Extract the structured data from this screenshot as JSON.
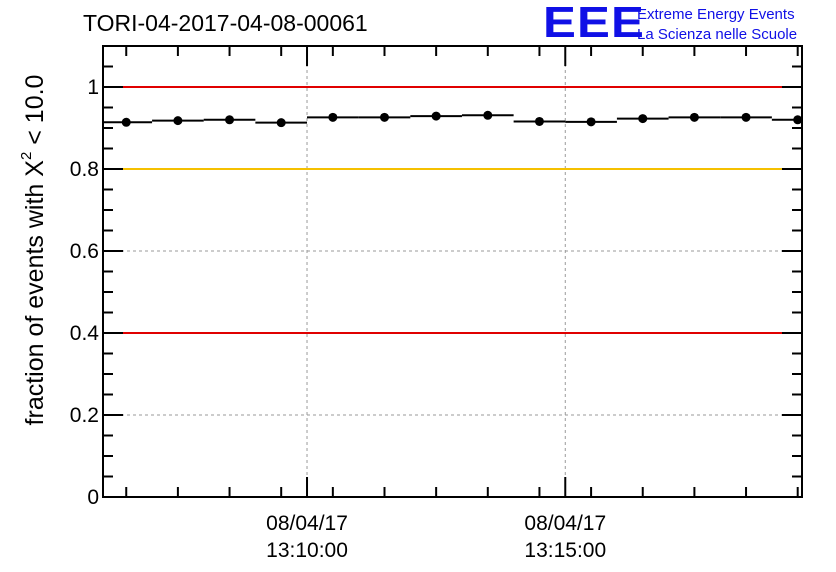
{
  "title": "TORI-04-2017-04-08-00061",
  "logo": {
    "mark": "EEE",
    "line1": "Extreme Energy Events",
    "line2": "La Scienza nelle Scuole"
  },
  "ylabel": {
    "before": "fraction of events with X",
    "sup": "2",
    "after": " < 10.0"
  },
  "chart_data": {
    "type": "scatter",
    "title": "TORI-04-2017-04-08-00061",
    "ylabel": "fraction of events with X² < 10.0",
    "xlabel": "",
    "ylim": [
      0,
      1.1
    ],
    "yticks": [
      0,
      0.2,
      0.4,
      0.6,
      0.8,
      1
    ],
    "ytick_labels": [
      "0",
      "0.2",
      "0.4",
      "0.6",
      "0.8",
      "1"
    ],
    "xlim": [
      "13:06:03",
      "13:19:35"
    ],
    "xticks": [
      {
        "x": "13:10:00",
        "label_date": "08/04/17",
        "label_time": "13:10:00"
      },
      {
        "x": "13:15:00",
        "label_date": "08/04/17",
        "label_time": "13:15:00"
      }
    ],
    "x_minor_ticks": [
      "13:06:30",
      "13:07:30",
      "13:08:30",
      "13:09:30",
      "13:10:30",
      "13:11:30",
      "13:12:30",
      "13:13:30",
      "13:14:30",
      "13:15:30",
      "13:16:30",
      "13:17:30",
      "13:18:30",
      "13:19:30"
    ],
    "grid": true,
    "reference_lines": [
      {
        "y": 1.0,
        "color": "#e00000"
      },
      {
        "y": 0.8,
        "color": "#f5c000"
      },
      {
        "y": 0.4,
        "color": "#e00000"
      }
    ],
    "series": [
      {
        "color": "#000000",
        "bin_width_seconds": 60,
        "x": [
          "13:06:30",
          "13:07:30",
          "13:08:30",
          "13:09:30",
          "13:10:30",
          "13:11:30",
          "13:12:30",
          "13:13:30",
          "13:14:30",
          "13:15:30",
          "13:16:30",
          "13:17:30",
          "13:18:30",
          "13:19:30"
        ],
        "y": [
          0.914,
          0.918,
          0.92,
          0.913,
          0.926,
          0.926,
          0.929,
          0.931,
          0.916,
          0.915,
          0.923,
          0.926,
          0.926,
          0.92
        ]
      }
    ]
  }
}
